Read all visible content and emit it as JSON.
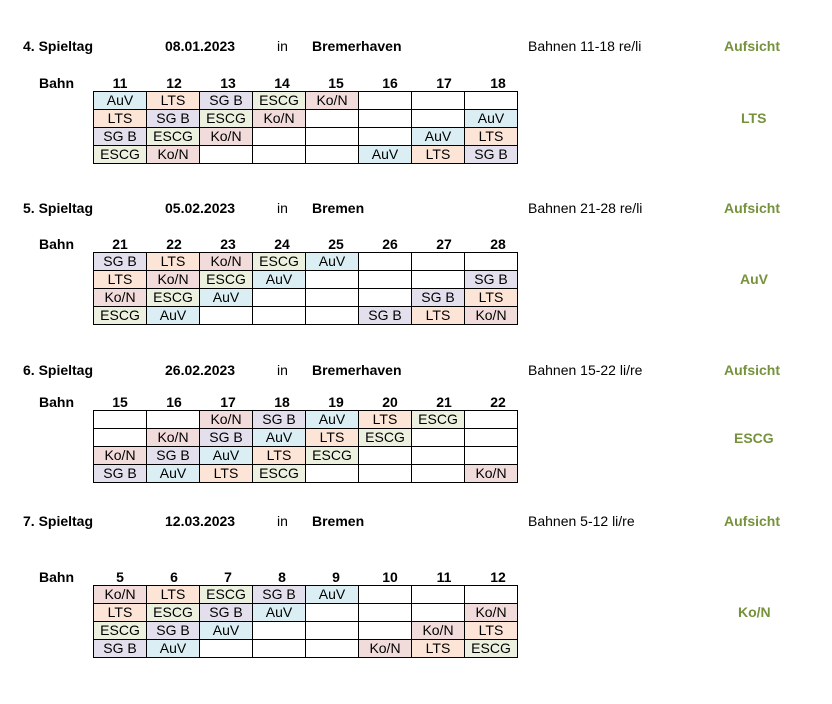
{
  "colors": {
    "AuV": "#daeef3",
    "LTS": "#fce4d6",
    "SG B": "#e4dfec",
    "ESCG": "#ebf1de",
    "Ko/N": "#f2dcdb",
    "aufsicht": "#76923c"
  },
  "bahn_label": "Bahn",
  "in_label": "in",
  "aufsicht_label": "Aufsicht",
  "blocks": [
    {
      "spieltag": "4. Spieltag",
      "date": "08.01.2023",
      "city": "Bremerhaven",
      "bahnen": "Bahnen 11-18 re/li",
      "aufsicht": "LTS",
      "lanes": [
        "11",
        "12",
        "13",
        "14",
        "15",
        "16",
        "17",
        "18"
      ],
      "rows": [
        [
          "AuV",
          "LTS",
          "SG B",
          "ESCG",
          "Ko/N",
          "",
          "",
          ""
        ],
        [
          "LTS",
          "SG B",
          "ESCG",
          "Ko/N",
          "",
          "",
          "",
          "AuV"
        ],
        [
          "SG B",
          "ESCG",
          "Ko/N",
          "",
          "",
          "",
          "AuV",
          "LTS"
        ],
        [
          "ESCG",
          "Ko/N",
          "",
          "",
          "",
          "AuV",
          "LTS",
          "SG B"
        ]
      ]
    },
    {
      "spieltag": "5. Spieltag",
      "date": "05.02.2023",
      "city": "Bremen",
      "bahnen": "Bahnen 21-28 re/li",
      "aufsicht": "AuV",
      "lanes": [
        "21",
        "22",
        "23",
        "24",
        "25",
        "26",
        "27",
        "28"
      ],
      "rows": [
        [
          "SG B",
          "LTS",
          "Ko/N",
          "ESCG",
          "AuV",
          "",
          "",
          ""
        ],
        [
          "LTS",
          "Ko/N",
          "ESCG",
          "AuV",
          "",
          "",
          "",
          "SG B"
        ],
        [
          "Ko/N",
          "ESCG",
          "AuV",
          "",
          "",
          "",
          "SG B",
          "LTS"
        ],
        [
          "ESCG",
          "AuV",
          "",
          "",
          "",
          "SG B",
          "LTS",
          "Ko/N"
        ]
      ]
    },
    {
      "spieltag": "6. Spieltag",
      "date": "26.02.2023",
      "city": "Bremerhaven",
      "bahnen": "Bahnen 15-22 li/re",
      "aufsicht": "ESCG",
      "lanes": [
        "15",
        "16",
        "17",
        "18",
        "19",
        "20",
        "21",
        "22"
      ],
      "rows": [
        [
          "",
          "",
          "Ko/N",
          "SG B",
          "AuV",
          "LTS",
          "ESCG",
          ""
        ],
        [
          "",
          "Ko/N",
          "SG B",
          "AuV",
          "LTS",
          "ESCG",
          "",
          ""
        ],
        [
          "Ko/N",
          "SG B",
          "AuV",
          "LTS",
          "ESCG",
          "",
          "",
          ""
        ],
        [
          "SG B",
          "AuV",
          "LTS",
          "ESCG",
          "",
          "",
          "",
          "Ko/N"
        ]
      ]
    },
    {
      "spieltag": "7. Spieltag",
      "date": "12.03.2023",
      "city": "Bremen",
      "bahnen": "Bahnen 5-12 li/re",
      "aufsicht": "Ko/N",
      "lanes": [
        "5",
        "6",
        "7",
        "8",
        "9",
        "10",
        "11",
        "12"
      ],
      "rows": [
        [
          "Ko/N",
          "LTS",
          "ESCG",
          "SG B",
          "AuV",
          "",
          "",
          ""
        ],
        [
          "LTS",
          "ESCG",
          "SG B",
          "AuV",
          "",
          "",
          "",
          "Ko/N"
        ],
        [
          "ESCG",
          "SG B",
          "AuV",
          "",
          "",
          "",
          "Ko/N",
          "LTS"
        ],
        [
          "SG B",
          "AuV",
          "",
          "",
          "",
          "Ko/N",
          "LTS",
          "ESCG"
        ]
      ]
    }
  ]
}
